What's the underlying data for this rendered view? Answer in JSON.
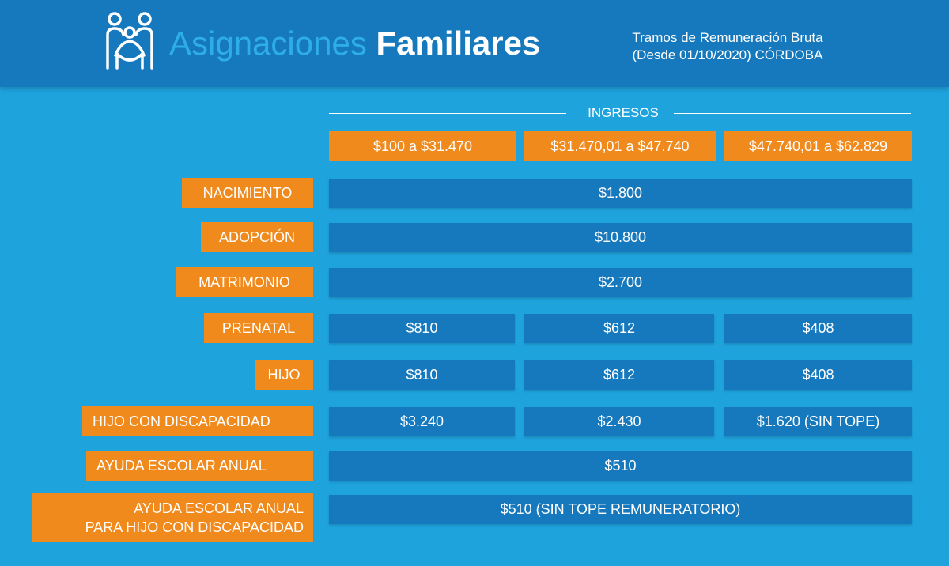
{
  "header": {
    "title_light": "Asignaciones",
    "title_bold": "Familiares",
    "subtitle_line1": "Tramos de Remuneración Bruta",
    "subtitle_line2": "(Desde 01/10/2020) CÓRDOBA",
    "logo_icon": "family-icon"
  },
  "table": {
    "group_label": "INGRESOS",
    "columns": [
      "$100 a $31.470",
      "$31.470,01 a $47.740",
      "$47.740,01 a $62.829"
    ],
    "rows": {
      "nacimiento": {
        "label": "NACIMIENTO",
        "value": "$1.800"
      },
      "adopcion": {
        "label": "ADOPCIÓN",
        "value": "$10.800"
      },
      "matrimonio": {
        "label": "MATRIMONIO",
        "value": "$2.700"
      },
      "prenatal": {
        "label": "PRENATAL",
        "values": [
          "$810",
          "$612",
          "$408"
        ]
      },
      "hijo": {
        "label": "HIJO",
        "values": [
          "$810",
          "$612",
          "$408"
        ]
      },
      "hijo_discapacidad": {
        "label": "HIJO CON DISCAPACIDAD",
        "values": [
          "$3.240",
          "$2.430",
          "$1.620 (SIN TOPE)"
        ]
      },
      "ayuda_escolar": {
        "label": "AYUDA ESCOLAR ANUAL",
        "value": "$510"
      },
      "ayuda_escolar_discapacidad": {
        "label_line1": "AYUDA ESCOLAR ANUAL",
        "label_line2": "PARA HIJO CON DISCAPACIDAD",
        "value": "$510 (SIN TOPE REMUNERATORIO)"
      }
    }
  },
  "colors": {
    "background": "#1ea3dd",
    "header": "#1679bd",
    "cell": "#1679bd",
    "label": "#f08a1c",
    "title_light": "#2eaee9"
  }
}
